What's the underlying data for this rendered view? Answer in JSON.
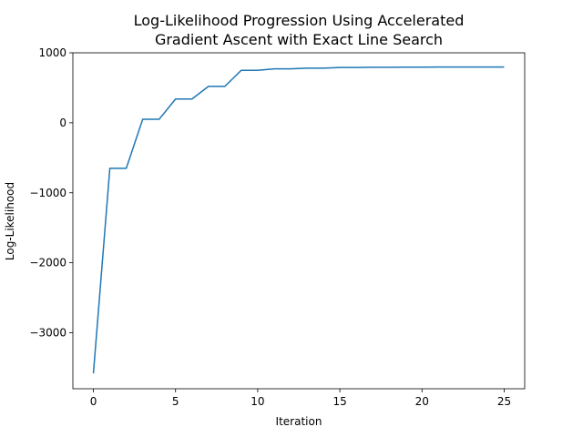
{
  "chart_data": {
    "type": "line",
    "title": [
      "Log-Likelihood Progression Using Accelerated",
      "Gradient Ascent with Exact Line Search"
    ],
    "xlabel": "Iteration",
    "ylabel": "Log-Likelihood",
    "xlim": [
      -1.25,
      26.25
    ],
    "ylim": [
      -3800,
      1000
    ],
    "x_ticks": [
      0,
      5,
      10,
      15,
      20,
      25
    ],
    "x_tick_labels": [
      "0",
      "5",
      "10",
      "15",
      "20",
      "25"
    ],
    "y_ticks": [
      1000,
      0,
      -1000,
      -2000,
      -3000
    ],
    "y_tick_labels": [
      "1000",
      "0",
      "−1000",
      "−2000",
      "−3000"
    ],
    "grid": false,
    "series": [
      {
        "color": "#1f77b4",
        "x": [
          0,
          1,
          2,
          3,
          4,
          5,
          6,
          7,
          8,
          9,
          10,
          11,
          12,
          13,
          14,
          15,
          16,
          17,
          18,
          19,
          20,
          21,
          22,
          23,
          24,
          25
        ],
        "y": [
          -3580,
          -650,
          -650,
          50,
          50,
          340,
          340,
          520,
          520,
          750,
          750,
          770,
          770,
          780,
          780,
          790,
          790,
          793,
          793,
          795,
          795,
          796,
          796,
          796,
          796,
          796
        ]
      }
    ]
  }
}
